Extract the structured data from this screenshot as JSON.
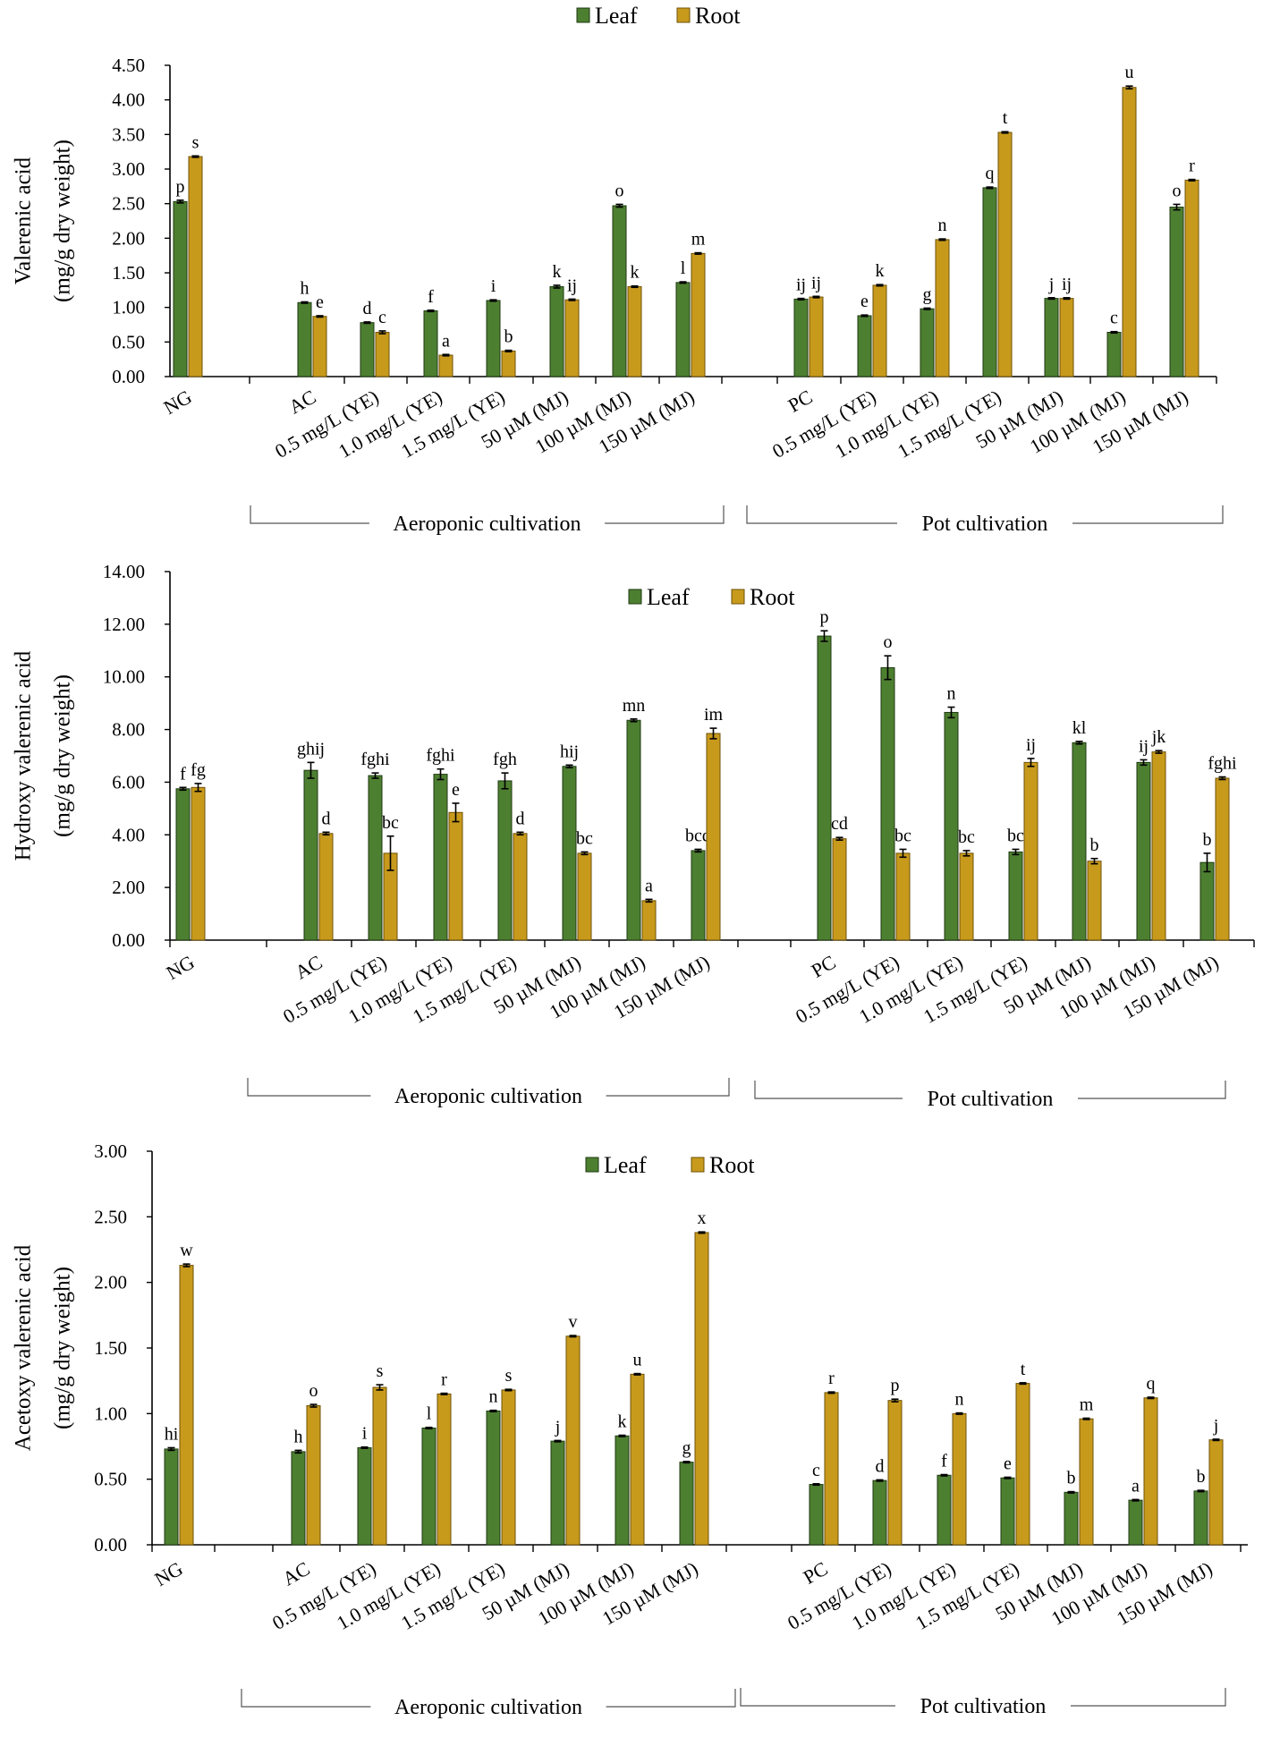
{
  "colors": {
    "leaf": "#4d7f30",
    "root": "#c89a1c"
  },
  "legend": {
    "leaf": "Leaf",
    "root": "Root"
  },
  "chart_data": [
    {
      "type": "bar",
      "ylabel": [
        "Valerenic acid",
        "(mg/g dry weight)"
      ],
      "ylim": [
        0,
        4.5
      ],
      "yticks": [
        "0.00",
        "0.50",
        "1.00",
        "1.50",
        "2.00",
        "2.50",
        "3.00",
        "3.50",
        "4.00",
        "4.50"
      ],
      "legend_position": "top-center",
      "groups": [
        "Aeroponic cultivation",
        "Pot cultivation"
      ],
      "categories": [
        "NG",
        "AC",
        "0.5 mg/L (YE)",
        "1.0 mg/L (YE)",
        "1.5 mg/L (YE)",
        "50 µM (MJ)",
        "100 µM (MJ)",
        "150 µM (MJ)",
        "PC",
        "0.5 mg/L (YE)",
        "1.0  mg/L (YE)",
        "1.5 mg/L (YE)",
        "50 µM (MJ)",
        "100 µM (MJ)",
        "150 µM (MJ)"
      ],
      "series": [
        {
          "name": "Leaf",
          "values": [
            2.53,
            1.07,
            0.78,
            0.95,
            1.1,
            1.3,
            2.47,
            1.36,
            1.12,
            0.88,
            0.98,
            2.73,
            1.13,
            0.64,
            2.45
          ],
          "errors": [
            0.02,
            0.01,
            0.01,
            0.01,
            0.01,
            0.02,
            0.02,
            0.01,
            0.01,
            0.01,
            0.01,
            0.01,
            0.01,
            0.01,
            0.04
          ],
          "labels": [
            "p",
            "h",
            "d",
            "f",
            "i",
            "k",
            "o",
            "l",
            "ij",
            "e",
            "g",
            "q",
            "j",
            "c",
            "o"
          ]
        },
        {
          "name": "Root",
          "values": [
            3.18,
            0.87,
            0.64,
            0.31,
            0.37,
            1.11,
            1.3,
            1.78,
            1.15,
            1.32,
            1.98,
            3.53,
            1.13,
            4.18,
            2.84
          ],
          "errors": [
            0.01,
            0.01,
            0.02,
            0.01,
            0.01,
            0.01,
            0.01,
            0.01,
            0.01,
            0.01,
            0.01,
            0.01,
            0.01,
            0.02,
            0.01
          ],
          "labels": [
            "s",
            "e",
            "c",
            "a",
            "b",
            "ij",
            "k",
            "m",
            "ij",
            "k",
            "n",
            "t",
            "ij",
            "u",
            "r"
          ]
        }
      ]
    },
    {
      "type": "bar",
      "ylabel": [
        "Hydroxy valerenic acid",
        "(mg/g dry weight)"
      ],
      "ylim": [
        0,
        14
      ],
      "yticks": [
        "0.00",
        "2.00",
        "4.00",
        "6.00",
        "8.00",
        "10.00",
        "12.00",
        "14.00"
      ],
      "legend_position": "top-center",
      "groups": [
        "Aeroponic cultivation",
        "Pot cultivation"
      ],
      "categories": [
        "NG",
        "AC",
        "0.5 mg/L (YE)",
        "1.0 mg/L (YE)",
        "1.5 mg/L (YE)",
        "50 µM (MJ)",
        "100 µM (MJ)",
        "150 µM (MJ)",
        "PC",
        "0.5 mg/L (YE)",
        "1.0  mg/L (YE)",
        "1.5 mg/L (YE)",
        "50 µM (MJ)",
        "100 µM (MJ)",
        "150 µM (MJ)"
      ],
      "series": [
        {
          "name": "Leaf",
          "values": [
            5.75,
            6.45,
            6.25,
            6.3,
            6.05,
            6.6,
            8.35,
            3.4,
            11.55,
            10.35,
            8.65,
            3.35,
            7.5,
            6.75,
            2.95
          ],
          "errors": [
            0.05,
            0.3,
            0.1,
            0.2,
            0.3,
            0.05,
            0.05,
            0.05,
            0.2,
            0.45,
            0.2,
            0.1,
            0.05,
            0.1,
            0.35
          ],
          "labels": [
            "f",
            "ghij",
            "fghi",
            "fghi",
            "fgh",
            "hij",
            "mn",
            "bcd",
            "p",
            "o",
            "n",
            "bc",
            "kl",
            "ij",
            "b"
          ]
        },
        {
          "name": "Root",
          "values": [
            5.8,
            4.05,
            3.3,
            4.85,
            4.05,
            3.3,
            1.5,
            7.85,
            3.85,
            3.3,
            3.3,
            6.75,
            3.0,
            7.15,
            6.15
          ],
          "errors": [
            0.15,
            0.05,
            0.65,
            0.35,
            0.05,
            0.05,
            0.05,
            0.2,
            0.05,
            0.15,
            0.1,
            0.15,
            0.1,
            0.05,
            0.05
          ],
          "labels": [
            "fg",
            "d",
            "bc",
            "e",
            "d",
            "bc",
            "a",
            "im",
            "cd",
            "bc",
            "bc",
            "ij",
            "b",
            "jk",
            "fghi"
          ]
        }
      ]
    },
    {
      "type": "bar",
      "ylabel": [
        "Acetoxy valerenic acid",
        "(mg/g dry weight)"
      ],
      "ylim": [
        0,
        3
      ],
      "yticks": [
        "0.00",
        "0.50",
        "1.00",
        "1.50",
        "2.00",
        "2.50",
        "3.00"
      ],
      "legend_position": "top-center",
      "groups": [
        "Aeroponic cultivation",
        "Pot cultivation"
      ],
      "categories": [
        "NG",
        "AC",
        "0.5 mg/L (YE)",
        "1.0 mg/L (YE)",
        "1.5 mg/L (YE)",
        "50 µM (MJ)",
        "100 µM (MJ)",
        "150 µM (MJ)",
        "PC",
        "0.5 mg/L (YE)",
        "1.0  mg/L (YE)",
        "1.5 mg/L (YE)",
        "50 µM (MJ)",
        "100 µM (MJ)",
        "150 µM (MJ)"
      ],
      "series": [
        {
          "name": "Leaf",
          "values": [
            0.73,
            0.71,
            0.74,
            0.89,
            1.02,
            0.79,
            0.83,
            0.63,
            0.46,
            0.49,
            0.53,
            0.51,
            0.4,
            0.34,
            0.41
          ],
          "errors": [
            0.01,
            0.01,
            0.005,
            0.005,
            0.005,
            0.005,
            0.005,
            0.005,
            0.005,
            0.005,
            0.005,
            0.005,
            0.005,
            0.005,
            0.005
          ],
          "labels": [
            "hi",
            "h",
            "i",
            "l",
            "n",
            "j",
            "k",
            "g",
            "c",
            "d",
            "f",
            "e",
            "b",
            "a",
            "b"
          ]
        },
        {
          "name": "Root",
          "values": [
            2.13,
            1.06,
            1.2,
            1.15,
            1.18,
            1.59,
            1.3,
            2.38,
            1.16,
            1.1,
            1.0,
            1.23,
            0.96,
            1.12,
            0.8
          ],
          "errors": [
            0.01,
            0.01,
            0.02,
            0.005,
            0.005,
            0.005,
            0.005,
            0.005,
            0.005,
            0.01,
            0.005,
            0.005,
            0.005,
            0.005,
            0.005
          ],
          "labels": [
            "w",
            "o",
            "s",
            "r",
            "s",
            "v",
            "u",
            "x",
            "r",
            "p",
            "n",
            "t",
            "m",
            "q",
            "j"
          ]
        }
      ]
    }
  ]
}
